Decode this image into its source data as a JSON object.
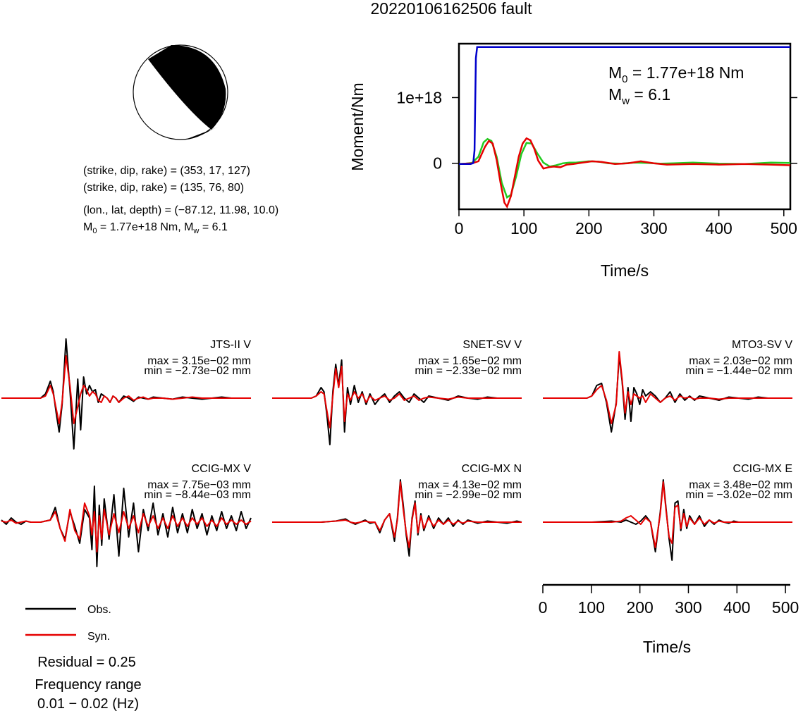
{
  "title": "20220106162506 fault",
  "colors": {
    "obs": "#000000",
    "syn": "#e60000",
    "moment": "#0000cc",
    "stf": "#22cc22"
  },
  "info": {
    "line1": "(strike, dip, rake) = (353, 17, 127)",
    "line2": "(strike, dip, rake) = (135, 76, 80)",
    "line3": "(lon., lat, depth) = (−87.12, 11.98, 10.0)",
    "m0_prefix": "M",
    "m0_sub": "0",
    "m0_value": " = 1.77e+18 Nm, M",
    "mw_sub": "w",
    "mw_value": " = 6.1"
  },
  "legend": {
    "obs_label": "Obs.",
    "syn_label": "Syn.",
    "residual": "Residual = 0.25",
    "freq_title": "Frequency range",
    "freq_value": "0.01 − 0.02 (Hz)"
  },
  "chart_data": [
    {
      "type": "line",
      "name": "moment-function",
      "xlabel": "Time/s",
      "ylabel": "Moment/Nm",
      "xlim": [
        0,
        510
      ],
      "ylim": [
        -700000000000000000,
        1820000000000000000
      ],
      "xticks": [
        0,
        100,
        200,
        300,
        400,
        500
      ],
      "xtick_labels": [
        "0",
        "100",
        "200",
        "300",
        "400",
        "500"
      ],
      "yticks": [
        0,
        1000000000000000000
      ],
      "ytick_labels": [
        "0",
        "1e+18"
      ],
      "annotation": {
        "m0_prefix": "M",
        "m0_sub": "0",
        "m0_value": " = 1.77e+18 Nm",
        "mw_prefix": "M",
        "mw_sub": "w",
        "mw_value": " = 6.1"
      },
      "series": [
        {
          "role": "moment",
          "x": [
            0,
            18,
            22,
            24,
            26,
            28,
            510
          ],
          "y": [
            -1e+16,
            -1e+16,
            3000000000000000.0,
            2e+17,
            1.6e+18,
            1.77e+18,
            1.77e+18
          ]
        },
        {
          "role": "stf",
          "x": [
            0,
            10,
            20,
            30,
            38,
            44,
            50,
            58,
            66,
            74,
            80,
            88,
            96,
            104,
            112,
            120,
            130,
            140,
            150,
            160,
            170,
            180,
            200,
            215,
            230,
            250,
            270,
            290,
            310,
            330,
            360,
            400,
            440,
            480,
            510
          ],
          "y": [
            -1e+16,
            -5000000000000000.0,
            5000000000000000.0,
            1e+17,
            3.2e+17,
            3.7e+17,
            3.4e+17,
            1e+17,
            -3e+17,
            -5.2e+17,
            -4.8e+17,
            -2e+17,
            1.4e+17,
            3.1e+17,
            3e+17,
            1.6e+17,
            1e+16,
            -5e+16,
            -3e+16,
            0,
            1e+16,
            1e+16,
            3e+16,
            2.5e+16,
            0,
            -5000000000000000.0,
            1e+16,
            5000000000000000.0,
            -5000000000000000.0,
            0,
            1e+16,
            -5000000000000000.0,
            -1e+16,
            1e+16,
            5000000000000000.0
          ]
        },
        {
          "role": "stf-red",
          "x": [
            0,
            10,
            20,
            30,
            40,
            46,
            52,
            58,
            64,
            70,
            74,
            80,
            86,
            92,
            98,
            104,
            110,
            116,
            122,
            130,
            138,
            146,
            156,
            166,
            176,
            190,
            205,
            220,
            240,
            260,
            280,
            300,
            320,
            360,
            400,
            440,
            480,
            510
          ],
          "y": [
            -1e+16,
            -5000000000000000.0,
            0,
            3e+16,
            2.5e+17,
            3.4e+17,
            3e+17,
            5e+16,
            -3e+17,
            -6e+17,
            -6.6e+17,
            -5e+17,
            -2e+17,
            1e+17,
            3e+17,
            3.8e+17,
            3.5e+17,
            2.2e+17,
            4e+16,
            -8e+16,
            -6e+16,
            -5e+16,
            -6e+16,
            -2e+16,
            -1e+16,
            1e+16,
            3e+16,
            2e+16,
            -1e+16,
            0,
            3e+16,
            0,
            -2e+16,
            -1e+16,
            -2e+16,
            -1e+16,
            -2e+16,
            -3e+16
          ]
        }
      ]
    },
    {
      "type": "line",
      "name": "waveform-comparison",
      "xlabel": "Time/s",
      "xlim": [
        0,
        510
      ],
      "xticks": [
        0,
        100,
        200,
        300,
        400,
        500
      ],
      "xtick_labels": [
        "0",
        "100",
        "200",
        "300",
        "400",
        "500"
      ],
      "panels": [
        {
          "station": "JTS-II V",
          "max": "max = 3.15e−02 mm",
          "min": "min = −2.73e−02 mm",
          "x": [
            0,
            80,
            90,
            100,
            106,
            112,
            118,
            124,
            132,
            140,
            148,
            156,
            162,
            168,
            174,
            180,
            186,
            192,
            198,
            204,
            210,
            216,
            222,
            228,
            234,
            240,
            250,
            260,
            270,
            280,
            290,
            300,
            310,
            330,
            350,
            370,
            390,
            410,
            430,
            450,
            470,
            490,
            510
          ],
          "obs": [
            0,
            0,
            0.2,
            0.8,
            0.3,
            -0.7,
            -1.6,
            -0.3,
            2.8,
            0.4,
            -2.4,
            0.9,
            -1.5,
            1.0,
            0.2,
            0.6,
            0.3,
            0.4,
            -0.2,
            0.2,
            0.1,
            0.0,
            -0.2,
            0.1,
            0.0,
            -0.2,
            0.1,
            0.0,
            -0.15,
            0.05,
            0.0,
            -0.05,
            0.05,
            0.0,
            -0.05,
            0.05,
            0.0,
            -0.05,
            0.0,
            0.05,
            0.0,
            0.0,
            0.0
          ],
          "syn": [
            0,
            0,
            0.1,
            0.6,
            0.2,
            -0.5,
            -1.2,
            -0.2,
            2.0,
            0.6,
            -1.2,
            -0.4,
            0.2,
            0.6,
            0.4,
            0.1,
            0.3,
            0.2,
            -0.1,
            -0.2,
            0.1,
            0.0,
            -0.2,
            0.1,
            0.0,
            -0.2,
            0.0,
            0.1,
            -0.1,
            0.0,
            0.05,
            -0.05,
            0.0,
            0.0,
            -0.05,
            0.0,
            0.05,
            0.0,
            0.0,
            0.0,
            0.0,
            0.0,
            0.0
          ]
        },
        {
          "station": "SNET-SV V",
          "max": "max = 1.65e−02 mm",
          "min": "min = −2.33e−02 mm",
          "x": [
            0,
            80,
            90,
            100,
            106,
            112,
            118,
            124,
            130,
            136,
            142,
            148,
            154,
            160,
            168,
            176,
            184,
            192,
            200,
            210,
            220,
            230,
            240,
            250,
            260,
            270,
            280,
            290,
            300,
            310,
            320,
            340,
            360,
            380,
            400,
            420,
            440,
            460,
            480,
            500,
            510
          ],
          "obs": [
            0,
            0,
            0.1,
            0.5,
            0.3,
            -0.8,
            -2.2,
            0.3,
            1.6,
            0.6,
            1.8,
            -1.6,
            0.5,
            -0.3,
            0.6,
            -0.2,
            0.3,
            -0.3,
            0.2,
            -0.3,
            0.0,
            0.2,
            -0.2,
            0.1,
            0.3,
            0.0,
            -0.2,
            0.2,
            0.0,
            -0.2,
            0.1,
            0.0,
            -0.1,
            0.1,
            0.0,
            -0.05,
            0.05,
            0.0,
            0.0,
            0.0,
            0.0
          ],
          "syn": [
            0,
            0,
            0.1,
            0.3,
            0.2,
            -0.6,
            -1.4,
            0.1,
            1.4,
            0.5,
            1.5,
            -1.1,
            0.2,
            -0.1,
            0.3,
            0.0,
            0.2,
            -0.2,
            0.1,
            -0.1,
            0.0,
            0.1,
            -0.1,
            0.0,
            0.2,
            -0.1,
            0.0,
            0.1,
            -0.1,
            0.0,
            0.05,
            0.0,
            -0.05,
            0.05,
            0.0,
            0.0,
            0.0,
            0.0,
            0.0,
            0.0,
            0.0
          ]
        },
        {
          "station": "MTO3-SV V",
          "max": "max = 2.03e−02 mm",
          "min": "min = −1.44e−02 mm",
          "x": [
            0,
            90,
            100,
            110,
            120,
            130,
            140,
            150,
            156,
            162,
            168,
            174,
            180,
            186,
            192,
            198,
            204,
            210,
            220,
            230,
            240,
            250,
            260,
            270,
            280,
            290,
            300,
            310,
            320,
            340,
            360,
            380,
            400,
            420,
            440,
            460,
            480,
            500,
            510
          ],
          "obs": [
            0,
            0,
            0.1,
            0.6,
            0.7,
            -0.2,
            -1.6,
            -0.2,
            2.0,
            0.8,
            -1.0,
            0.5,
            -1.1,
            0.5,
            0.2,
            -0.3,
            0.4,
            0.1,
            0.3,
            0.1,
            -0.2,
            0.0,
            0.3,
            -0.2,
            0.2,
            -0.1,
            0.1,
            -0.1,
            0.1,
            0.0,
            -0.1,
            0.05,
            0.0,
            -0.05,
            0.05,
            0.0,
            0.0,
            0.0,
            0.0
          ],
          "syn": [
            0,
            0,
            0.1,
            0.4,
            0.6,
            -0.1,
            -1.2,
            -0.3,
            2.2,
            0.9,
            -0.7,
            0.3,
            -0.3,
            0.2,
            0.1,
            0.0,
            0.1,
            -0.2,
            0.2,
            0.0,
            -0.2,
            0.0,
            0.1,
            -0.1,
            0.1,
            0.0,
            0.05,
            -0.05,
            0.0,
            0.0,
            -0.05,
            0.0,
            0.0,
            0.0,
            0.0,
            0.0,
            0.0,
            0.0,
            0.0
          ]
        },
        {
          "station": "CCIG-MX V",
          "max": "max = 7.75e−03 mm",
          "min": "min = −8.44e−03 mm",
          "x": [
            0,
            10,
            20,
            30,
            40,
            50,
            60,
            80,
            100,
            110,
            120,
            130,
            140,
            150,
            160,
            170,
            180,
            185,
            190,
            195,
            200,
            205,
            210,
            220,
            230,
            240,
            250,
            260,
            270,
            280,
            290,
            300,
            310,
            320,
            330,
            340,
            350,
            360,
            370,
            380,
            390,
            400,
            410,
            420,
            430,
            440,
            450,
            460,
            470,
            480,
            490,
            500,
            510
          ],
          "obs": [
            0.1,
            -0.1,
            0.2,
            0.0,
            -0.1,
            0.05,
            0.0,
            0.0,
            0.1,
            0.7,
            -0.3,
            -0.8,
            0.5,
            -0.2,
            -1.0,
            0.6,
            0.2,
            -1.3,
            1.7,
            -2.1,
            0.8,
            -1.1,
            1.1,
            -0.8,
            1.3,
            -1.6,
            1.6,
            -0.7,
            0.9,
            -1.4,
            0.6,
            -0.4,
            0.9,
            -0.6,
            0.4,
            -0.7,
            0.7,
            -0.5,
            0.4,
            -0.5,
            0.6,
            -0.3,
            0.4,
            -0.6,
            0.3,
            -0.4,
            0.5,
            -0.3,
            0.3,
            -0.4,
            0.5,
            -0.3,
            0.2
          ],
          "syn": [
            0.05,
            0.0,
            0.1,
            -0.05,
            0.0,
            0.05,
            0.0,
            0.0,
            0.1,
            0.5,
            -0.3,
            -0.9,
            0.6,
            -0.4,
            -0.8,
            0.9,
            0.3,
            -0.6,
            0.5,
            -1.4,
            0.3,
            -0.8,
            0.6,
            -0.6,
            0.4,
            -0.5,
            0.5,
            -0.3,
            0.3,
            -0.5,
            0.4,
            -0.2,
            0.3,
            -0.3,
            0.2,
            -0.3,
            0.3,
            -0.2,
            0.2,
            -0.2,
            0.2,
            -0.1,
            0.2,
            -0.2,
            0.1,
            -0.2,
            0.2,
            -0.1,
            0.1,
            -0.1,
            0.1,
            -0.1,
            0.05
          ]
        },
        {
          "station": "CCIG-MX N",
          "max": "max = 4.13e−02 mm",
          "min": "min = −2.99e−02 mm",
          "x": [
            0,
            100,
            130,
            150,
            160,
            170,
            180,
            190,
            200,
            210,
            220,
            230,
            240,
            250,
            256,
            262,
            268,
            274,
            280,
            286,
            292,
            298,
            304,
            310,
            320,
            330,
            340,
            350,
            360,
            370,
            380,
            390,
            400,
            420,
            440,
            460,
            480,
            500,
            510
          ],
          "obs": [
            0,
            0,
            0.05,
            0.15,
            0.0,
            -0.1,
            0.0,
            0.1,
            -0.05,
            0.0,
            -0.5,
            0.1,
            0.4,
            -0.9,
            0.2,
            2.0,
            0.8,
            -0.6,
            -1.6,
            0.2,
            1.0,
            -0.6,
            0.4,
            -0.4,
            0.3,
            -0.3,
            0.2,
            -0.1,
            0.2,
            -0.2,
            0.1,
            -0.1,
            0.1,
            -0.05,
            0.05,
            0.0,
            -0.05,
            0.05,
            0.0
          ],
          "syn": [
            0,
            0,
            0.05,
            0.1,
            0.0,
            -0.05,
            0.0,
            0.05,
            0.0,
            0.0,
            -0.4,
            0.1,
            0.4,
            -0.7,
            0.1,
            1.9,
            0.6,
            -0.5,
            -1.2,
            0.1,
            0.9,
            -0.5,
            0.3,
            -0.3,
            0.2,
            -0.2,
            0.1,
            -0.1,
            0.1,
            -0.1,
            0.05,
            -0.05,
            0.05,
            0.0,
            0.0,
            0.0,
            0.0,
            0.0,
            0.0
          ]
        },
        {
          "station": "CCIG-MX E",
          "max": "max = 3.48e−02 mm",
          "min": "min = −3.02e−02 mm",
          "x": [
            0,
            100,
            140,
            160,
            170,
            180,
            190,
            200,
            210,
            220,
            230,
            240,
            246,
            252,
            258,
            264,
            270,
            276,
            282,
            288,
            294,
            300,
            310,
            320,
            330,
            340,
            350,
            360,
            370,
            380,
            390,
            400,
            420,
            440,
            460,
            480,
            500,
            510
          ],
          "obs": [
            0,
            0,
            0.05,
            0.0,
            0.1,
            0.0,
            -0.1,
            0.05,
            0.3,
            0.0,
            -1.4,
            0.5,
            2.0,
            0.6,
            -0.8,
            -1.8,
            0.9,
            1.0,
            -0.4,
            0.6,
            -0.3,
            0.3,
            -0.1,
            0.3,
            -0.2,
            0.1,
            -0.1,
            0.1,
            0.0,
            -0.05,
            0.05,
            0.0,
            0.0,
            0.0,
            0.0,
            0.0,
            0.0,
            0.0
          ],
          "syn": [
            0,
            0,
            0.0,
            0.05,
            0.2,
            0.3,
            0.1,
            -0.1,
            0.2,
            0.0,
            -1.2,
            0.4,
            1.9,
            0.5,
            -0.7,
            -1.0,
            0.7,
            0.8,
            -0.3,
            0.4,
            -0.2,
            0.2,
            -0.1,
            0.2,
            -0.1,
            0.1,
            -0.05,
            0.05,
            0.0,
            0.0,
            0.0,
            0.0,
            0.0,
            0.0,
            0.0,
            0.0,
            0.0,
            0.0
          ]
        }
      ]
    }
  ]
}
